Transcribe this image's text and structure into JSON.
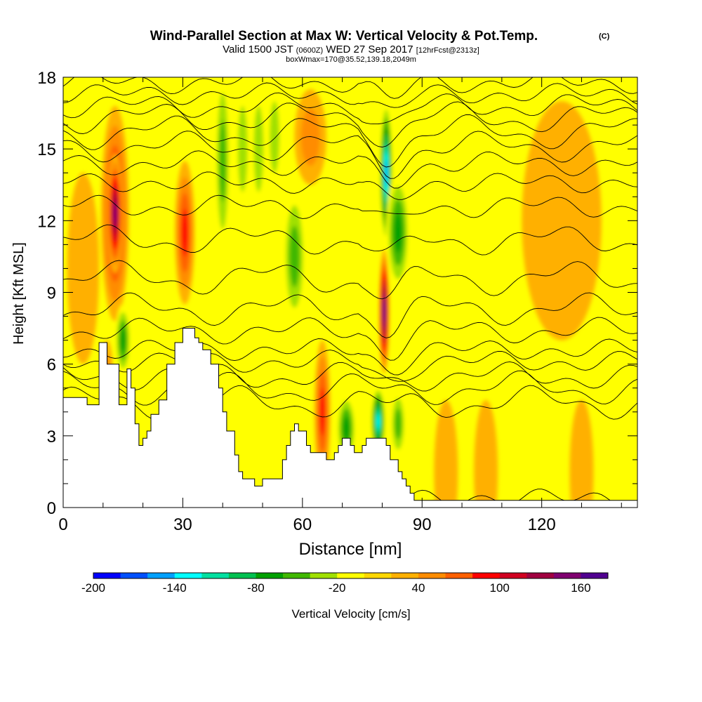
{
  "chart_data": {
    "type": "heatmap",
    "title": "Wind-Parallel Section at Max W: Vertical Velocity & Pot.Temp.",
    "title_mark": "(C)",
    "subtitle": {
      "main_a": "Valid 1500 JST",
      "small_a": "(0600Z)",
      "main_b": "WED 27 Sep 2017",
      "small_b": "[12hrFcst@2313z]"
    },
    "subtitle2": "boxWmax=170@35.52,139.18,2049m",
    "xlabel": "Distance [nm]",
    "ylabel": "Height [Kft MSL]",
    "xlim": [
      0,
      144
    ],
    "ylim": [
      0,
      18
    ],
    "x_ticks": [
      "0",
      "30",
      "60",
      "90",
      "120"
    ],
    "x_tick_values": [
      0,
      30,
      60,
      90,
      120
    ],
    "y_ticks": [
      "0",
      "3",
      "6",
      "9",
      "12",
      "15",
      "18"
    ],
    "y_tick_values": [
      0,
      3,
      6,
      9,
      12,
      15,
      18
    ],
    "colorbar": {
      "label": "Vertical Velocity [cm/s]",
      "range": [
        -200,
        180
      ],
      "step": 20,
      "tick_labels": [
        "-200",
        "-140",
        "-80",
        "-20",
        "40",
        "100",
        "160"
      ],
      "tick_values": [
        -200,
        -140,
        -80,
        -20,
        40,
        100,
        160
      ],
      "colors": [
        "#0000ff",
        "#0050ff",
        "#00a0ff",
        "#00ffff",
        "#00e0a0",
        "#00c050",
        "#00a000",
        "#40b800",
        "#a0e000",
        "#ffff00",
        "#ffd700",
        "#ffb000",
        "#ff8c00",
        "#ff6000",
        "#ff0000",
        "#d00020",
        "#a00040",
        "#800070",
        "#500090"
      ]
    },
    "terrain_top_kft": [
      [
        0,
        4.6
      ],
      [
        6,
        4.6
      ],
      [
        6,
        4.3
      ],
      [
        9,
        4.3
      ],
      [
        9,
        6.9
      ],
      [
        11,
        6.9
      ],
      [
        11,
        6.0
      ],
      [
        14,
        6.0
      ],
      [
        14,
        4.3
      ],
      [
        16,
        4.3
      ],
      [
        16,
        5.8
      ],
      [
        17,
        5.8
      ],
      [
        17,
        5.0
      ],
      [
        18,
        5.0
      ],
      [
        18,
        3.5
      ],
      [
        19,
        3.5
      ],
      [
        19,
        2.6
      ],
      [
        20,
        2.6
      ],
      [
        20,
        2.9
      ],
      [
        21,
        2.9
      ],
      [
        21,
        3.2
      ],
      [
        22,
        3.2
      ],
      [
        22,
        3.9
      ],
      [
        24,
        3.9
      ],
      [
        24,
        4.5
      ],
      [
        26,
        4.5
      ],
      [
        26,
        6.0
      ],
      [
        28,
        6.0
      ],
      [
        28,
        6.9
      ],
      [
        30,
        6.9
      ],
      [
        30,
        7.5
      ],
      [
        33,
        7.5
      ],
      [
        33,
        7.1
      ],
      [
        34,
        7.1
      ],
      [
        34,
        6.9
      ],
      [
        35,
        6.9
      ],
      [
        35,
        6.6
      ],
      [
        37,
        6.6
      ],
      [
        37,
        6.0
      ],
      [
        39,
        6.0
      ],
      [
        39,
        5.0
      ],
      [
        40,
        5.0
      ],
      [
        40,
        4.0
      ],
      [
        41,
        4.0
      ],
      [
        41,
        3.2
      ],
      [
        43,
        3.2
      ],
      [
        43,
        2.2
      ],
      [
        44,
        2.2
      ],
      [
        44,
        1.5
      ],
      [
        45,
        1.5
      ],
      [
        45,
        1.2
      ],
      [
        48,
        1.2
      ],
      [
        48,
        0.9
      ],
      [
        50,
        0.9
      ],
      [
        50,
        1.2
      ],
      [
        55,
        1.2
      ],
      [
        55,
        2.0
      ],
      [
        56,
        2.0
      ],
      [
        56,
        2.6
      ],
      [
        57,
        2.6
      ],
      [
        57,
        3.2
      ],
      [
        58,
        3.2
      ],
      [
        58,
        3.5
      ],
      [
        59,
        3.5
      ],
      [
        59,
        3.2
      ],
      [
        61,
        3.2
      ],
      [
        61,
        2.6
      ],
      [
        62,
        2.6
      ],
      [
        62,
        2.3
      ],
      [
        66,
        2.3
      ],
      [
        66,
        2.0
      ],
      [
        68,
        2.0
      ],
      [
        68,
        2.3
      ],
      [
        69,
        2.3
      ],
      [
        69,
        2.6
      ],
      [
        70,
        2.6
      ],
      [
        70,
        2.9
      ],
      [
        72,
        2.9
      ],
      [
        72,
        2.6
      ],
      [
        73,
        2.6
      ],
      [
        73,
        2.3
      ],
      [
        75,
        2.3
      ],
      [
        75,
        2.6
      ],
      [
        76,
        2.6
      ],
      [
        76,
        2.9
      ],
      [
        81,
        2.9
      ],
      [
        81,
        2.6
      ],
      [
        82,
        2.6
      ],
      [
        82,
        2.0
      ],
      [
        84,
        2.0
      ],
      [
        84,
        1.5
      ],
      [
        85,
        1.5
      ],
      [
        85,
        1.2
      ],
      [
        86,
        1.2
      ],
      [
        86,
        0.9
      ],
      [
        87,
        0.9
      ],
      [
        87,
        0.6
      ],
      [
        88,
        0.6
      ],
      [
        88,
        0.3
      ],
      [
        144,
        0.3
      ]
    ],
    "velocity_features": [
      {
        "x": 13,
        "y": 12.3,
        "rx": 3.5,
        "ry": 4.5,
        "w": 100
      },
      {
        "x": 13,
        "y": 12.3,
        "rx": 2,
        "ry": 2.5,
        "w": 140
      },
      {
        "x": 30.5,
        "y": 11.5,
        "rx": 2.5,
        "ry": 3,
        "w": 90
      },
      {
        "x": 40,
        "y": 14.5,
        "rx": 2,
        "ry": 4,
        "w": -60
      },
      {
        "x": 45,
        "y": 15,
        "rx": 2,
        "ry": 3,
        "w": -40
      },
      {
        "x": 49,
        "y": 15,
        "rx": 2,
        "ry": 3,
        "w": -40
      },
      {
        "x": 53,
        "y": 15.5,
        "rx": 2,
        "ry": 2.5,
        "w": -30
      },
      {
        "x": 58,
        "y": 10.5,
        "rx": 3,
        "ry": 3,
        "w": -50
      },
      {
        "x": 62,
        "y": 15.5,
        "rx": 4,
        "ry": 2,
        "w": 40
      },
      {
        "x": 15,
        "y": 7,
        "rx": 2,
        "ry": 1.5,
        "w": -70
      },
      {
        "x": 11,
        "y": 5.5,
        "rx": 1.5,
        "ry": 1.5,
        "w": 50
      },
      {
        "x": 65,
        "y": 4,
        "rx": 2,
        "ry": 3,
        "w": 80
      },
      {
        "x": 71,
        "y": 3.3,
        "rx": 2.5,
        "ry": 1.5,
        "w": -80
      },
      {
        "x": 80.5,
        "y": 8.2,
        "rx": 1.3,
        "ry": 2.6,
        "w": 170
      },
      {
        "x": 81,
        "y": 14,
        "rx": 1.6,
        "ry": 3,
        "w": -150
      },
      {
        "x": 84,
        "y": 11.5,
        "rx": 3,
        "ry": 2.5,
        "w": -70
      },
      {
        "x": 79,
        "y": 3.6,
        "rx": 1.8,
        "ry": 1.5,
        "w": -140
      },
      {
        "x": 84,
        "y": 3.5,
        "rx": 2,
        "ry": 1.5,
        "w": -60
      },
      {
        "x": 100,
        "y": 9,
        "rx": 25,
        "ry": 6,
        "w": 15
      },
      {
        "x": 96,
        "y": 1.5,
        "rx": 3,
        "ry": 3,
        "w": 30
      },
      {
        "x": 106,
        "y": 1.5,
        "rx": 3,
        "ry": 3,
        "w": 30
      },
      {
        "x": 130,
        "y": 1.5,
        "rx": 3,
        "ry": 3,
        "w": 25
      },
      {
        "x": 125,
        "y": 12,
        "rx": 10,
        "ry": 5,
        "w": 20
      },
      {
        "x": 5,
        "y": 10,
        "rx": 4,
        "ry": 4,
        "w": 30
      }
    ],
    "theta_contour_heights_kft": [
      0.4,
      4.4,
      5.0,
      5.5,
      6.1,
      6.6,
      7.4,
      8.3,
      9.6,
      11.2,
      12.6,
      13.6,
      14.4,
      15.1,
      15.7,
      16.3,
      16.8,
      17.3,
      17.8
    ]
  }
}
